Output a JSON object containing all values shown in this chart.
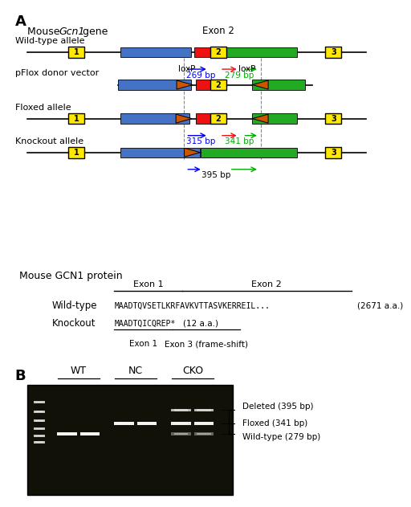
{
  "panel_A_label": "A",
  "panel_B_label": "B",
  "gene_title": "Mouse Gcn1 gene",
  "protein_title": "Mouse GCN1 protein",
  "allele_labels": [
    "Wild-type allele",
    "pFlox donor vector",
    "Floxed allele",
    "Knockout allele"
  ],
  "exon2_label": "Exon 2",
  "bp_labels": {
    "wt_left": "269 bp",
    "wt_right": "279 bp",
    "flox_left": "315 bp",
    "flox_right": "341 bp",
    "ko": "395 bp"
  },
  "loxP_labels": [
    "loxP",
    "loxP"
  ],
  "protein_section": {
    "exon1_label": "Exon 1",
    "exon2_label": "Exon 2",
    "wt_label": "Wild-type",
    "ko_label": "Knockout",
    "wt_seq": "MAADTQVSETLKRFAVKVTTASVKERREIL...",
    "wt_aa": "(2671 a.a.)",
    "ko_seq": "MAADTQICQREP*",
    "ko_aa": "(12 a.a.)",
    "exon1_below": "Exon 1",
    "exon3_below": "Exon 3 (frame-shift)"
  },
  "gel_labels": {
    "wt": "WT",
    "nc": "NC",
    "cko": "CKO",
    "deleted": "Deleted (395 bp)",
    "floxed": "Floxed (341 bp)",
    "wildtype": "Wild-type (279 bp)"
  },
  "colors": {
    "blue_bar": "#4472C4",
    "red_bar": "#EE1111",
    "green_bar": "#22AA22",
    "yellow_box": "#FFE900",
    "orange_triangle": "#CC5500",
    "text_blue": "#0000EE",
    "text_green": "#00AA00",
    "text_red": "#EE1111",
    "text_black": "#000000",
    "bg_white": "#FFFFFF",
    "dashed_gray": "#888888"
  },
  "gcn1_italic": "Gcn1"
}
